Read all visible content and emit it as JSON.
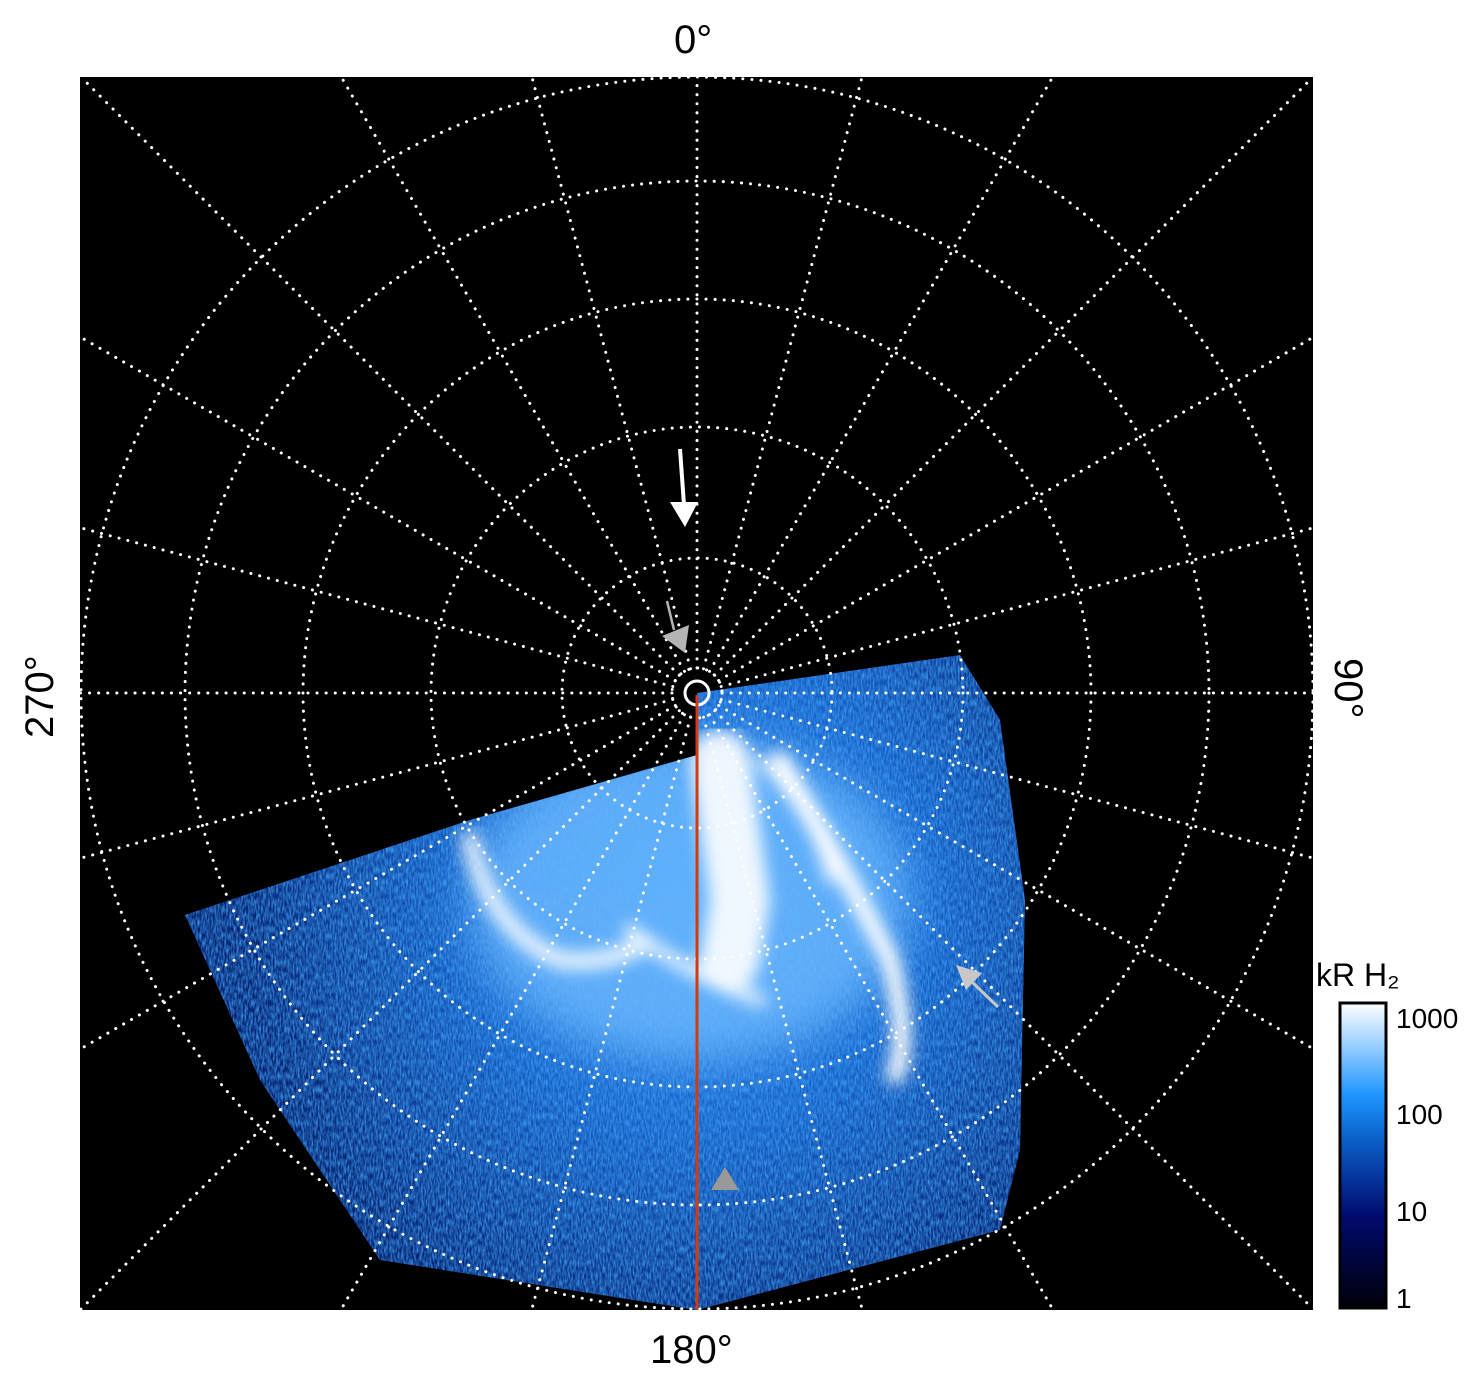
{
  "axes": {
    "top_label": "0°",
    "bottom_label": "180°",
    "left_label": "270°",
    "right_label": "90°"
  },
  "colorbar": {
    "title": "kR H₂",
    "ticks": [
      "1000",
      "100",
      "10",
      "1"
    ],
    "scale": "log",
    "range": [
      1,
      1000
    ],
    "colors": [
      "#000008",
      "#000a6e",
      "#0a5fc8",
      "#1e96ff",
      "#a0d2ff",
      "#ffffff"
    ]
  },
  "colors": {
    "background": "#000000",
    "grid": "#ffffff",
    "meridian_line": "#d43a10",
    "arrow_white": "#ffffff",
    "arrow_gray": "#b4b4b4"
  }
}
